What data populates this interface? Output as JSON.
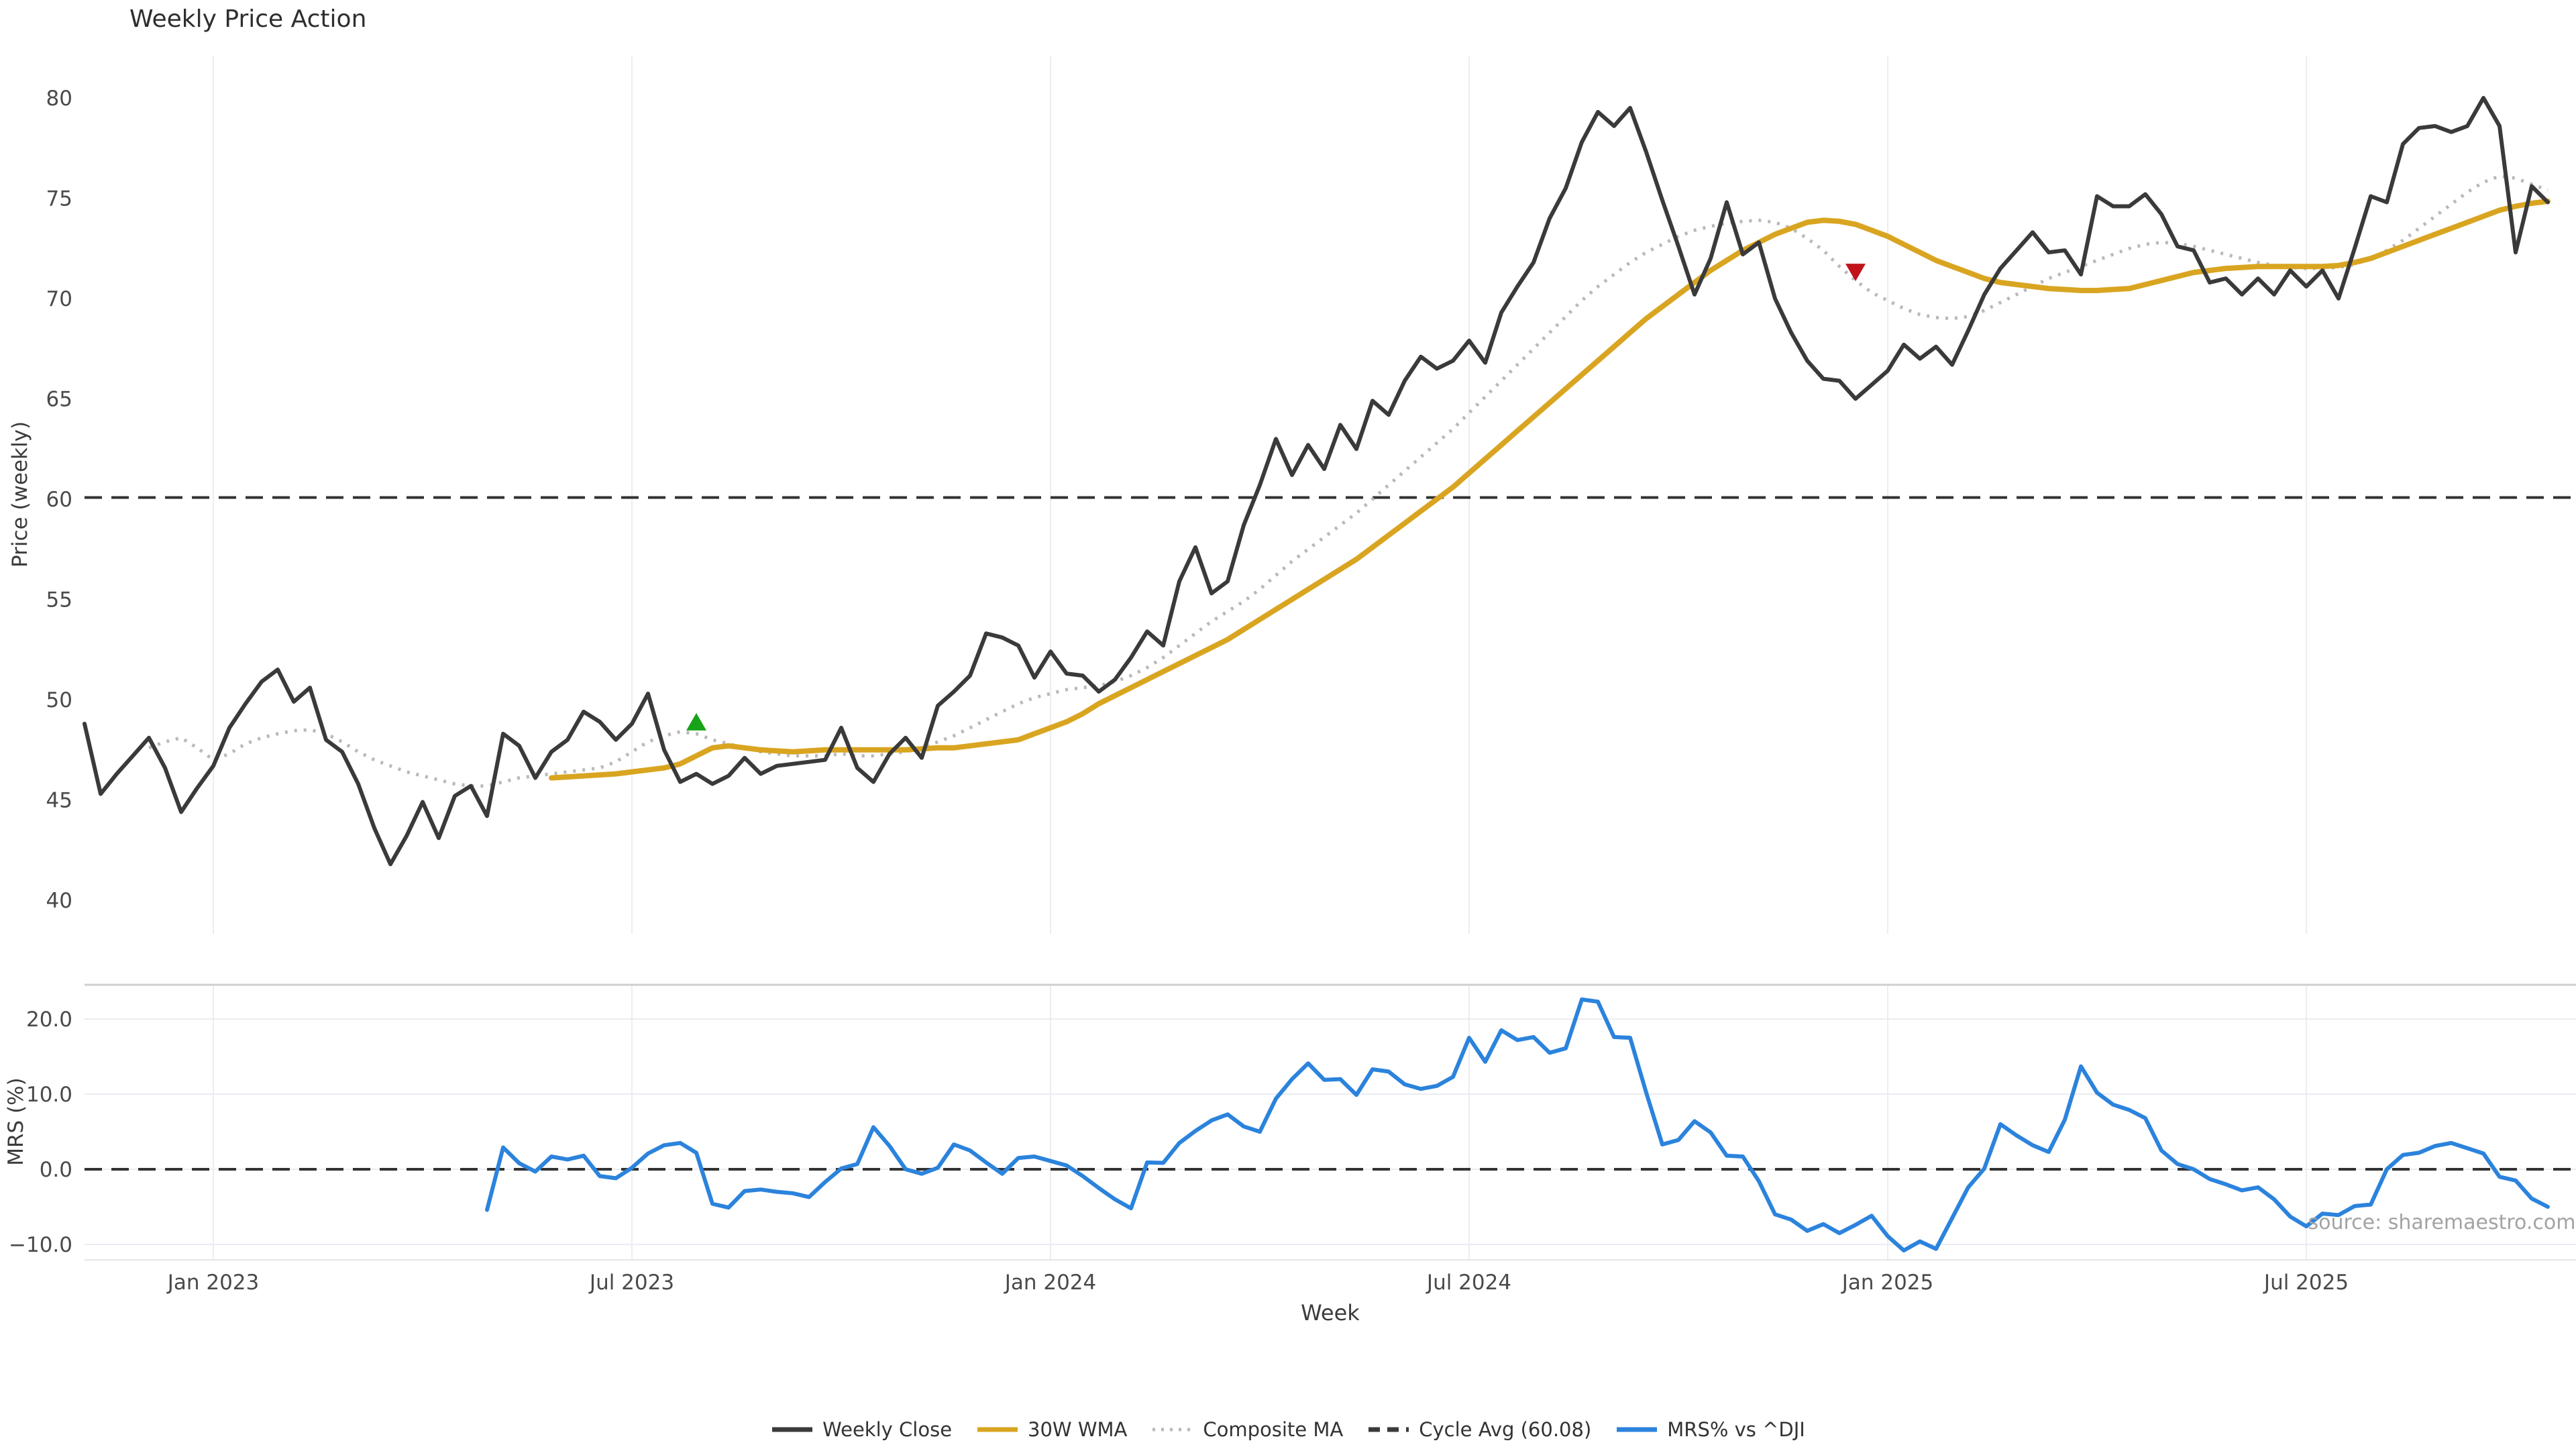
{
  "title": "Weekly Price Action",
  "source_note": "source: sharemaestro.com",
  "axis": {
    "xlabel": "Week",
    "price_ylabel": "Price (weekly)",
    "mrs_ylabel": "MRS (%)"
  },
  "colors": {
    "weekly_close": "#3a3a3a",
    "wma_30w": "#d9a521",
    "composite_ma": "#b9b9b9",
    "cycle_avg": "#333333",
    "mrs": "#2b83dc",
    "buy_marker": "#17a317",
    "sell_marker": "#c2131c",
    "grid_vertical": "#ededed",
    "grid_horizontal": "#e9ecf1",
    "panel_spine": "#cfcfcf",
    "tick_text": "#4a4a4a",
    "source_text": "#a3a3a3"
  },
  "legend": {
    "items": [
      {
        "label": "Weekly Close",
        "style": "solid",
        "color": "#3a3a3a"
      },
      {
        "label": "30W WMA",
        "style": "solid",
        "color": "#d9a521"
      },
      {
        "label": "Composite MA",
        "style": "dotted",
        "color": "#b9b9b9"
      },
      {
        "label": "Cycle Avg (60.08)",
        "style": "dashed",
        "color": "#3a3a3a"
      },
      {
        "label": "MRS% vs ^DJI",
        "style": "solid",
        "color": "#2b83dc"
      }
    ]
  },
  "chart_data": {
    "type": "line",
    "title": "Weekly Price Action",
    "xlabel": "Week",
    "x_ticks": [
      {
        "week": 8,
        "label": "Jan 2023"
      },
      {
        "week": 34,
        "label": "Jul 2023"
      },
      {
        "week": 60,
        "label": "Jan 2024"
      },
      {
        "week": 86,
        "label": "Jul 2024"
      },
      {
        "week": 112,
        "label": "Jan 2025"
      },
      {
        "week": 138,
        "label": "Jul 2025"
      }
    ],
    "panels": [
      {
        "id": "price",
        "ylabel": "Price (weekly)",
        "ylim": [
          38.5,
          81.5
        ],
        "y_ticks": [
          80,
          75,
          70,
          65,
          60,
          55,
          50,
          45,
          40
        ],
        "cycle_avg": 60.08
      },
      {
        "id": "mrs",
        "ylabel": "MRS (%)",
        "ylim": [
          -13,
          24.5
        ],
        "y_ticks": [
          20.0,
          10.0,
          0.0,
          -10.0
        ],
        "zero_line": 0.0
      }
    ],
    "series": {
      "weekly_close": {
        "label": "Weekly Close",
        "panel": "price",
        "start_week": 0,
        "values": [
          48.8,
          45.3,
          46.3,
          47.2,
          48.1,
          46.6,
          44.4,
          45.6,
          46.7,
          48.6,
          49.8,
          50.9,
          51.5,
          49.9,
          50.6,
          48.0,
          47.4,
          45.8,
          43.6,
          41.8,
          43.2,
          44.9,
          43.1,
          45.2,
          45.7,
          44.2,
          48.3,
          47.7,
          46.1,
          47.4,
          48.0,
          49.4,
          48.9,
          48.0,
          48.8,
          50.3,
          47.5,
          45.9,
          46.3,
          45.8,
          46.2,
          47.1,
          46.3,
          46.7,
          46.8,
          46.9,
          47.0,
          48.6,
          46.6,
          45.9,
          47.3,
          48.1,
          47.1,
          49.7,
          50.4,
          51.2,
          53.3,
          53.1,
          52.7,
          51.1,
          52.4,
          51.3,
          51.2,
          50.4,
          51.0,
          52.1,
          53.4,
          52.7,
          55.9,
          57.6,
          55.3,
          55.9,
          58.7,
          60.7,
          63.0,
          61.2,
          62.7,
          61.5,
          63.7,
          62.5,
          64.9,
          64.2,
          65.9,
          67.1,
          66.5,
          66.9,
          67.9,
          66.8,
          69.3,
          70.6,
          71.8,
          74.0,
          75.5,
          77.8,
          79.3,
          78.6,
          79.5,
          77.3,
          74.9,
          72.6,
          70.2,
          72.0,
          74.8,
          72.2,
          72.8,
          70.0,
          68.3,
          66.9,
          66.0,
          65.9,
          65.0,
          65.7,
          66.4,
          67.7,
          67.0,
          67.6,
          66.7,
          68.4,
          70.2,
          71.5,
          72.4,
          73.3,
          72.3,
          72.4,
          71.2,
          75.1,
          74.6,
          74.6,
          75.2,
          74.2,
          72.6,
          72.4,
          70.8,
          71.0,
          70.2,
          71.0,
          70.2,
          71.4,
          70.6,
          71.4,
          70.0,
          72.5,
          75.1,
          74.8,
          77.7,
          78.5,
          78.6,
          78.3,
          78.6,
          80.0,
          78.6,
          72.3,
          75.6,
          74.8
        ]
      },
      "wma_30w": {
        "label": "30W WMA",
        "panel": "price",
        "start_week": 29,
        "values": [
          46.1,
          46.15,
          46.2,
          46.25,
          46.3,
          46.4,
          46.5,
          46.6,
          46.8,
          47.2,
          47.6,
          47.7,
          47.6,
          47.5,
          47.45,
          47.4,
          47.45,
          47.5,
          47.5,
          47.5,
          47.5,
          47.5,
          47.5,
          47.55,
          47.6,
          47.6,
          47.7,
          47.8,
          47.9,
          48.0,
          48.3,
          48.6,
          48.9,
          49.3,
          49.8,
          50.2,
          50.6,
          51.0,
          51.4,
          51.8,
          52.2,
          52.6,
          53.0,
          53.5,
          54.0,
          54.5,
          55.0,
          55.5,
          56.0,
          56.5,
          57.0,
          57.6,
          58.2,
          58.8,
          59.4,
          60.0,
          60.6,
          61.3,
          62.0,
          62.7,
          63.4,
          64.1,
          64.8,
          65.5,
          66.2,
          66.9,
          67.6,
          68.3,
          69.0,
          69.6,
          70.2,
          70.8,
          71.4,
          71.9,
          72.4,
          72.8,
          73.2,
          73.5,
          73.8,
          73.9,
          73.85,
          73.7,
          73.4,
          73.1,
          72.7,
          72.3,
          71.9,
          71.6,
          71.3,
          71.0,
          70.8,
          70.7,
          70.6,
          70.5,
          70.45,
          70.4,
          70.4,
          70.45,
          70.5,
          70.7,
          70.9,
          71.1,
          71.3,
          71.4,
          71.5,
          71.55,
          71.6,
          71.6,
          71.6,
          71.6,
          71.6,
          71.65,
          71.8,
          72.0,
          72.3,
          72.6,
          72.9,
          73.2,
          73.5,
          73.8,
          74.1,
          74.4,
          74.6,
          74.75,
          74.85
        ]
      },
      "composite_ma": {
        "label": "Composite MA",
        "panel": "price",
        "start_week": 4,
        "values": [
          47.6,
          47.9,
          48.1,
          47.6,
          47.0,
          47.3,
          47.8,
          48.1,
          48.3,
          48.45,
          48.5,
          48.3,
          47.9,
          47.4,
          47.0,
          46.7,
          46.4,
          46.2,
          46.0,
          45.8,
          45.7,
          45.7,
          45.9,
          46.1,
          46.2,
          46.3,
          46.4,
          46.5,
          46.6,
          46.9,
          47.4,
          47.9,
          48.2,
          48.4,
          48.3,
          48.0,
          47.8,
          47.6,
          47.4,
          47.3,
          47.2,
          47.2,
          47.2,
          47.3,
          47.2,
          47.2,
          47.3,
          47.4,
          47.6,
          47.9,
          48.2,
          48.6,
          49.0,
          49.4,
          49.8,
          50.1,
          50.3,
          50.5,
          50.6,
          50.7,
          50.9,
          51.2,
          51.6,
          52.1,
          52.7,
          53.3,
          53.9,
          54.4,
          54.9,
          55.5,
          56.2,
          56.9,
          57.5,
          58.1,
          58.7,
          59.3,
          60.0,
          60.7,
          61.4,
          62.1,
          62.8,
          63.5,
          64.3,
          65.1,
          65.9,
          66.7,
          67.5,
          68.3,
          69.1,
          69.9,
          70.6,
          71.2,
          71.8,
          72.3,
          72.7,
          73.1,
          73.4,
          73.6,
          73.75,
          73.85,
          73.9,
          73.8,
          73.5,
          73.0,
          72.4,
          71.6,
          70.9,
          70.3,
          69.9,
          69.5,
          69.2,
          69.05,
          69.0,
          69.1,
          69.4,
          69.8,
          70.2,
          70.6,
          71.0,
          71.3,
          71.6,
          71.9,
          72.2,
          72.5,
          72.7,
          72.8,
          72.75,
          72.6,
          72.4,
          72.2,
          72.0,
          71.8,
          71.65,
          71.55,
          71.5,
          71.5,
          71.55,
          71.7,
          72.0,
          72.4,
          72.9,
          73.5,
          74.1,
          74.7,
          75.3,
          75.8,
          76.1,
          76.0,
          75.7,
          75.4
        ]
      },
      "mrs": {
        "label": "MRS% vs ^DJI",
        "panel": "mrs",
        "start_week": 25,
        "values": [
          -5.4,
          2.9,
          0.8,
          -0.3,
          1.7,
          1.3,
          1.8,
          -0.9,
          -1.2,
          0.2,
          2.1,
          3.2,
          3.5,
          2.2,
          -4.6,
          -5.1,
          -2.9,
          -2.7,
          -3.0,
          -3.2,
          -3.7,
          -1.7,
          0.1,
          0.7,
          5.6,
          3.1,
          0.0,
          -0.6,
          0.2,
          3.3,
          2.5,
          0.9,
          -0.6,
          1.5,
          1.7,
          1.1,
          0.5,
          -0.9,
          -2.5,
          -4.0,
          -5.2,
          0.9,
          0.85,
          3.5,
          5.1,
          6.5,
          7.3,
          5.7,
          5.0,
          9.4,
          12.0,
          14.1,
          11.9,
          12.0,
          9.9,
          13.3,
          13.0,
          11.3,
          10.7,
          11.1,
          12.3,
          17.5,
          14.3,
          18.5,
          17.2,
          17.6,
          15.5,
          16.1,
          22.6,
          22.3,
          17.6,
          17.5,
          10.2,
          3.3,
          3.9,
          6.4,
          4.9,
          1.8,
          1.7,
          -1.6,
          -6.0,
          -6.7,
          -8.2,
          -7.3,
          -8.5,
          -7.4,
          -6.2,
          -8.9,
          -10.8,
          -9.6,
          -10.6,
          -6.5,
          -2.4,
          0.1,
          6.0,
          4.5,
          3.2,
          2.3,
          6.6,
          13.7,
          10.2,
          8.6,
          7.9,
          6.8,
          2.5,
          0.7,
          0.0,
          -1.3,
          -2.0,
          -2.8,
          -2.4,
          -4.0,
          -6.3,
          -7.6,
          -5.9,
          -6.1,
          -4.9,
          -4.7,
          0.0,
          1.9,
          2.2,
          3.1,
          3.5,
          2.8,
          2.1,
          -1.0,
          -1.5,
          -3.9,
          -5.0
        ]
      }
    },
    "markers": [
      {
        "type": "buy",
        "shape": "triangle-up",
        "week": 38,
        "price": 48.8,
        "color": "#17a317"
      },
      {
        "type": "sell",
        "shape": "triangle-down",
        "week": 110,
        "price": 71.4,
        "color": "#c2131c"
      }
    ]
  }
}
